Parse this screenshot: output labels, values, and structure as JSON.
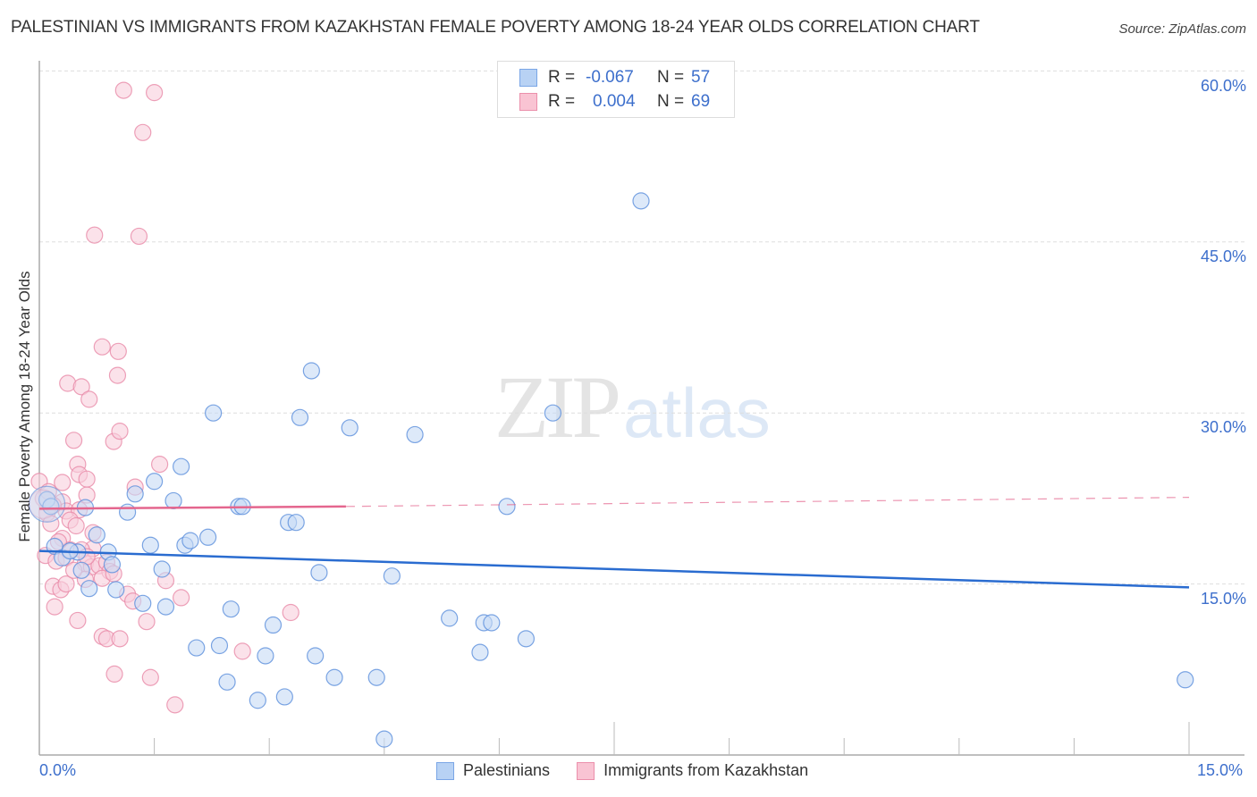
{
  "header": {
    "title": "PALESTINIAN VS IMMIGRANTS FROM KAZAKHSTAN FEMALE POVERTY AMONG 18-24 YEAR OLDS CORRELATION CHART",
    "source": "Source: ZipAtlas.com"
  },
  "watermark": {
    "zip": "ZIP",
    "atlas": "atlas"
  },
  "legend": {
    "rows": [
      {
        "swatch_color": "#b8d2f4",
        "swatch_border": "#7aa6e6",
        "r_label": "R =",
        "r_value": "-0.067",
        "n_label": "N =",
        "n_value": "57"
      },
      {
        "swatch_color": "#f9c4d3",
        "swatch_border": "#eb8fab",
        "r_label": "R =",
        "r_value": "0.004",
        "n_label": "N =",
        "n_value": "69"
      }
    ]
  },
  "bottom_legend": {
    "items": [
      {
        "label": "Palestinians",
        "swatch_color": "#b8d2f4",
        "swatch_border": "#7aa6e6"
      },
      {
        "label": "Immigrants from Kazakhstan",
        "swatch_color": "#f9c4d3",
        "swatch_border": "#eb8fab"
      }
    ]
  },
  "axes": {
    "ylabel": "Female Poverty Among 18-24 Year Olds",
    "y_ticks": [
      "60.0%",
      "45.0%",
      "30.0%",
      "15.0%"
    ],
    "x_ticks": [
      "0.0%",
      "15.0%"
    ]
  },
  "colors": {
    "blue_fill": "#c6dbf5",
    "blue_stroke": "#5b8fdc",
    "blue_line": "#2a6cd0",
    "pink_fill": "#f9cfdc",
    "pink_stroke": "#e98aa8",
    "pink_line": "#e4668e",
    "grid": "#dddddd",
    "axis": "#aaaaaa",
    "tick_text": "#3d6fcc"
  },
  "chart_data": {
    "type": "scatter",
    "title": "PALESTINIAN VS IMMIGRANTS FROM KAZAKHSTAN FEMALE POVERTY AMONG 18-24 YEAR OLDS CORRELATION CHART",
    "xlabel": "",
    "ylabel": "Female Poverty Among 18-24 Year Olds",
    "xlim": [
      0,
      15
    ],
    "ylim": [
      0,
      63
    ],
    "x_tick_labels": [
      "0.0%",
      "15.0%"
    ],
    "y_tick_labels": [
      "15.0%",
      "30.0%",
      "45.0%",
      "60.0%"
    ],
    "grid": true,
    "legend_position": "top-center and bottom",
    "series": [
      {
        "name": "Palestinians",
        "R": -0.067,
        "N": 57,
        "trend": {
          "x": [
            0,
            15
          ],
          "y": [
            17.9,
            14.7
          ],
          "style": "solid"
        },
        "points": [
          [
            0.1,
            22.4
          ],
          [
            0.15,
            21.8
          ],
          [
            0.5,
            17.8
          ],
          [
            0.55,
            16.2
          ],
          [
            0.65,
            14.6
          ],
          [
            0.6,
            21.7
          ],
          [
            0.75,
            19.3
          ],
          [
            0.9,
            17.8
          ],
          [
            0.95,
            16.7
          ],
          [
            1.0,
            14.5
          ],
          [
            1.15,
            21.3
          ],
          [
            1.25,
            22.9
          ],
          [
            1.35,
            13.3
          ],
          [
            1.45,
            18.4
          ],
          [
            1.5,
            24.0
          ],
          [
            1.6,
            16.3
          ],
          [
            1.65,
            13.0
          ],
          [
            1.75,
            22.3
          ],
          [
            1.85,
            25.3
          ],
          [
            1.9,
            18.4
          ],
          [
            1.97,
            18.8
          ],
          [
            2.05,
            9.4
          ],
          [
            2.2,
            19.1
          ],
          [
            2.27,
            30.0
          ],
          [
            2.45,
            6.4
          ],
          [
            2.35,
            9.6
          ],
          [
            2.5,
            12.8
          ],
          [
            2.6,
            21.8
          ],
          [
            2.65,
            21.8
          ],
          [
            2.85,
            4.8
          ],
          [
            2.95,
            8.7
          ],
          [
            3.05,
            11.4
          ],
          [
            3.2,
            5.1
          ],
          [
            3.25,
            20.4
          ],
          [
            3.35,
            20.4
          ],
          [
            3.4,
            29.6
          ],
          [
            3.55,
            33.7
          ],
          [
            3.6,
            8.7
          ],
          [
            3.65,
            16.0
          ],
          [
            3.85,
            6.8
          ],
          [
            4.05,
            28.7
          ],
          [
            4.4,
            6.8
          ],
          [
            4.5,
            1.4
          ],
          [
            4.6,
            15.7
          ],
          [
            4.9,
            28.1
          ],
          [
            5.35,
            12.0
          ],
          [
            5.75,
            9.0
          ],
          [
            5.8,
            11.6
          ],
          [
            5.9,
            11.6
          ],
          [
            6.1,
            21.8
          ],
          [
            6.35,
            10.2
          ],
          [
            6.7,
            30.0
          ],
          [
            7.85,
            48.6
          ],
          [
            14.95,
            6.6
          ],
          [
            0.2,
            18.3
          ],
          [
            0.3,
            17.3
          ],
          [
            0.4,
            17.9
          ]
        ]
      },
      {
        "name": "Immigrants from Kazakhstan",
        "R": 0.004,
        "N": 69,
        "trend": {
          "x": [
            0,
            4
          ],
          "y": [
            21.6,
            21.8
          ],
          "style": "solid",
          "extended": {
            "x": [
              4,
              15
            ],
            "y": [
              21.8,
              22.6
            ],
            "style": "dashed"
          }
        },
        "points": [
          [
            1.1,
            58.3
          ],
          [
            1.5,
            58.1
          ],
          [
            1.35,
            54.6
          ],
          [
            0.72,
            45.6
          ],
          [
            1.3,
            45.5
          ],
          [
            0.82,
            35.8
          ],
          [
            1.03,
            35.4
          ],
          [
            1.02,
            33.3
          ],
          [
            0.37,
            32.6
          ],
          [
            0.55,
            32.3
          ],
          [
            0.65,
            31.2
          ],
          [
            0.45,
            27.6
          ],
          [
            0.97,
            27.5
          ],
          [
            1.05,
            28.4
          ],
          [
            0.5,
            25.5
          ],
          [
            0.52,
            24.6
          ],
          [
            0.62,
            24.2
          ],
          [
            0.3,
            23.9
          ],
          [
            1.25,
            23.5
          ],
          [
            1.57,
            25.5
          ],
          [
            0.62,
            22.8
          ],
          [
            0.3,
            22.2
          ],
          [
            0.0,
            24.0
          ],
          [
            0.05,
            22.5
          ],
          [
            0.35,
            21.4
          ],
          [
            0.1,
            21.2
          ],
          [
            0.52,
            21.5
          ],
          [
            0.4,
            20.6
          ],
          [
            0.48,
            20.1
          ],
          [
            0.3,
            19.0
          ],
          [
            0.7,
            18.1
          ],
          [
            0.7,
            19.5
          ],
          [
            0.08,
            17.5
          ],
          [
            0.22,
            17.0
          ],
          [
            0.35,
            17.3
          ],
          [
            0.4,
            18.0
          ],
          [
            0.6,
            16.8
          ],
          [
            0.68,
            16.5
          ],
          [
            0.78,
            16.6
          ],
          [
            0.88,
            16.9
          ],
          [
            0.92,
            16.1
          ],
          [
            0.6,
            15.4
          ],
          [
            0.82,
            15.5
          ],
          [
            0.97,
            15.9
          ],
          [
            0.18,
            14.8
          ],
          [
            0.28,
            14.5
          ],
          [
            0.35,
            15.0
          ],
          [
            0.2,
            13.0
          ],
          [
            0.5,
            11.8
          ],
          [
            1.15,
            14.1
          ],
          [
            1.22,
            13.5
          ],
          [
            1.4,
            11.7
          ],
          [
            1.65,
            15.3
          ],
          [
            1.85,
            13.8
          ],
          [
            0.82,
            10.4
          ],
          [
            0.88,
            10.2
          ],
          [
            1.05,
            10.2
          ],
          [
            0.98,
            7.1
          ],
          [
            1.45,
            6.8
          ],
          [
            1.77,
            4.4
          ],
          [
            2.65,
            9.1
          ],
          [
            3.28,
            12.5
          ],
          [
            0.12,
            23.1
          ],
          [
            0.18,
            21.9
          ],
          [
            0.25,
            18.7
          ],
          [
            0.45,
            16.2
          ],
          [
            0.15,
            20.3
          ],
          [
            0.55,
            18.0
          ],
          [
            0.62,
            17.4
          ]
        ]
      }
    ]
  }
}
